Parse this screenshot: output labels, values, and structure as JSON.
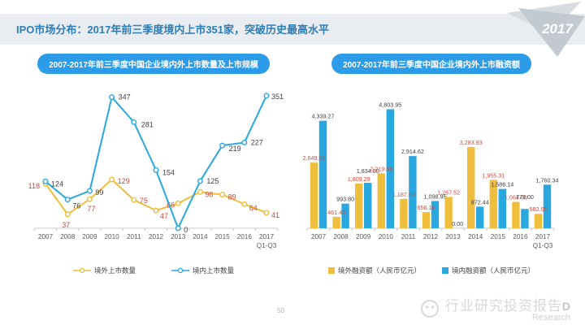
{
  "header": {
    "title": "IPO市场分布：2017年前三季度境内上市351家，突破历史最高水平",
    "year_badge": "2017"
  },
  "footer": {
    "page_number": "50",
    "watermark_text": "行业研究投资报告",
    "watermark_overlay": "D",
    "watermark_sub": "Research"
  },
  "colors": {
    "accent_yellow": "#f0be3d",
    "accent_blue": "#29a8df",
    "label_red": "#cf4a3d",
    "label_dark": "#404040",
    "pill_blue": "#2d9ce8",
    "header_band": "#e9edf1",
    "header_title_blue": "#2f7db5",
    "axis_gray": "#c9c9c9",
    "tick_label_gray": "#5a5a5a"
  },
  "chart_data": [
    {
      "type": "line",
      "title": "2007-2017年前三季度中国企业境内外上市数量及上市规模",
      "categories": [
        "2007",
        "2008",
        "2009",
        "2010",
        "2011",
        "2012",
        "2013",
        "2014",
        "2015",
        "2016",
        "2017"
      ],
      "last_category_note": "Q1-Q3",
      "ylim": [
        0,
        400
      ],
      "grid": false,
      "legend_position": "bottom",
      "series": [
        {
          "name": "境外上市数量",
          "color": "#f0be3d",
          "label_color": "#cf4a3d",
          "values": [
            118,
            37,
            77,
            129,
            75,
            47,
            66,
            96,
            89,
            64,
            41
          ]
        },
        {
          "name": "境内上市数量",
          "color": "#29a8df",
          "label_color": "#404040",
          "values": [
            124,
            76,
            99,
            347,
            281,
            154,
            0,
            125,
            219,
            227,
            351
          ]
        }
      ]
    },
    {
      "type": "bar",
      "title": "2007-2017年前三季度中国企业境内外上市融资额",
      "categories": [
        "2007",
        "2008",
        "2009",
        "2010",
        "2011",
        "2012",
        "2013",
        "2014",
        "2015",
        "2016",
        "2017"
      ],
      "last_category_note": "Q1-Q3",
      "ylim": [
        0,
        5000
      ],
      "grid": false,
      "legend_position": "bottom",
      "series": [
        {
          "name": "境外融资额（人民币亿元）",
          "color": "#f0be3d",
          "label_color": "#cf4a3d",
          "values": [
            2649.65,
            461.49,
            1809.29,
            2219.66,
            1187.53,
            656.16,
            1267.52,
            3283.93,
            1955.31,
            1064.0,
            582.05
          ]
        },
        {
          "name": "境内融资额（人民币亿元）",
          "color": "#29a8df",
          "label_color": "#404040",
          "values": [
            4339.27,
            993.8,
            1834.0,
            4803.95,
            2914.62,
            1098.95,
            0.0,
            872.44,
            1586.14,
            779.0,
            1760.34
          ]
        }
      ]
    }
  ]
}
